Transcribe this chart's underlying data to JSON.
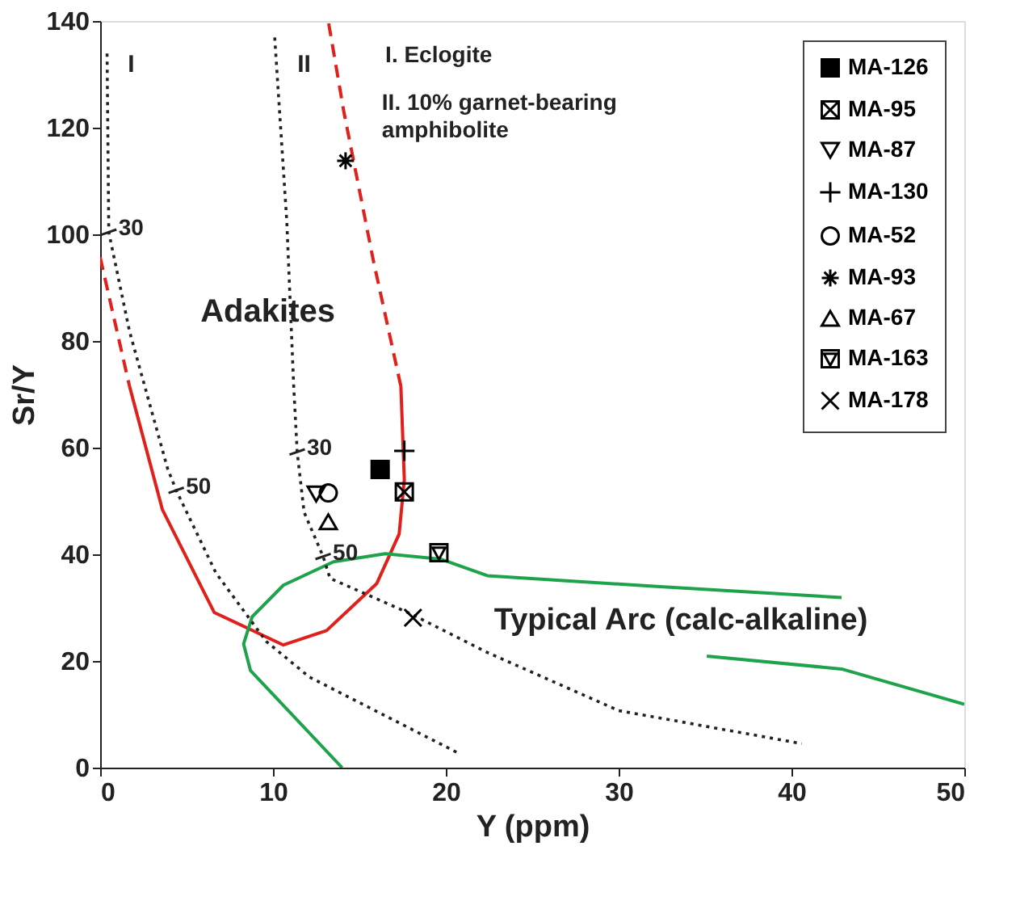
{
  "chart_data": {
    "type": "scatter",
    "xlabel": "Y (ppm)",
    "ylabel": "Sr/Y",
    "xlim": [
      0,
      50
    ],
    "ylim": [
      0,
      140
    ],
    "xticks": [
      0,
      10,
      20,
      30,
      40,
      50
    ],
    "yticks": [
      0,
      20,
      40,
      60,
      80,
      100,
      120,
      140
    ],
    "grid": false,
    "legend": "top right",
    "series": [
      {
        "name": "MA-126",
        "color": "#000000",
        "marker": "square",
        "x": [
          16.2
        ],
        "values": [
          55.9
        ]
      },
      {
        "name": "MA-95",
        "color": "#000000",
        "x": [
          17.6
        ],
        "values": [
          51.7
        ]
      },
      {
        "name": "MA-87",
        "color": "#000000",
        "x": [
          12.5
        ],
        "values": [
          51.3
        ]
      },
      {
        "name": "MA-130",
        "color": "#000000",
        "marker": "cross",
        "x": [
          17.6
        ],
        "values": [
          59.4
        ]
      },
      {
        "name": "MA-52",
        "color": "#000000",
        "marker": "circle",
        "x": [
          13.2
        ],
        "values": [
          51.5
        ]
      },
      {
        "name": "MA-93",
        "color": "#000000",
        "x": [
          14.2
        ],
        "values": [
          113.8
        ]
      },
      {
        "name": "MA-67",
        "color": "#000000",
        "marker": "triangle",
        "x": [
          13.2
        ],
        "values": [
          46.1
        ]
      },
      {
        "name": "MA-163",
        "color": "#000000",
        "x": [
          19.6
        ],
        "values": [
          40.3
        ]
      },
      {
        "name": "MA-178",
        "color": "#000000",
        "x": [
          18.1
        ],
        "values": [
          28.1
        ]
      },
      {
        "type": "line",
        "color": "#e0201b",
        "line_style": "dashed",
        "x": [
          0,
          1.7
        ],
        "values": [
          95.7,
          71.5
        ]
      },
      {
        "type": "line",
        "color": "#e0201b",
        "line_style": "solid",
        "x": [
          1.7,
          3.6,
          6.6,
          10.6,
          13.1,
          16.0,
          17.3,
          17.6,
          17.4
        ],
        "values": [
          71.5,
          48.4,
          29.1,
          23.0,
          25.7,
          34.5,
          43.8,
          54,
          71.5
        ]
      },
      {
        "type": "line",
        "color": "#e0201b",
        "line_style": "dashed",
        "x": [
          17.4,
          15.8,
          14.1,
          13.2
        ],
        "values": [
          71.5,
          95.2,
          123,
          140
        ]
      },
      {
        "type": "line",
        "color": "#1ea24b",
        "line_style": "solid",
        "x": [
          14.0,
          8.7,
          8.3,
          8.8,
          10.6,
          13.5,
          16.5,
          19.7,
          22.4,
          32,
          42.9
        ],
        "values": [
          0,
          18.2,
          23.2,
          28.3,
          34.2,
          38.6,
          40.1,
          39.1,
          36.0,
          34.0,
          31.9
        ]
      },
      {
        "type": "line",
        "color": "#1ea24b",
        "line_style": "solid",
        "x": [
          35.1,
          42.9,
          50
        ],
        "values": [
          20.9,
          18.5,
          11.9
        ]
      },
      {
        "type": "line",
        "color": "#222222",
        "line_style": "dotted",
        "x": [
          0.4,
          0.5,
          1.7,
          3.9,
          4.4,
          6.7,
          9.6,
          12.1,
          20.8
        ],
        "values": [
          133.9,
          100.4,
          81.8,
          56.1,
          52,
          36.5,
          23.7,
          17,
          2.6
        ]
      },
      {
        "type": "line",
        "color": "#222222",
        "line_style": "dotted",
        "x": [
          10.1,
          10.8,
          11.2,
          11.4,
          11.8,
          12.9,
          13.3,
          18.0,
          22.4,
          30,
          40.6
        ],
        "values": [
          136.9,
          102.4,
          71.5,
          59.2,
          47.9,
          39.6,
          35.5,
          28.8,
          21.6,
          10.7,
          4.5
        ]
      }
    ],
    "annotations": [
      "I",
      "II",
      "I. Eclogite",
      "II. 10% garnet-bearing\namphibolite",
      "Adakites",
      "Typical Arc (calc-alkaline)",
      {
        "text": "30",
        "x": 0.5,
        "y": 100.4
      },
      {
        "text": "50",
        "x": 4.4,
        "y": 52
      },
      {
        "text": "30",
        "x": 11.4,
        "y": 59.2
      },
      {
        "text": "50",
        "x": 12.9,
        "y": 39.6
      }
    ]
  }
}
